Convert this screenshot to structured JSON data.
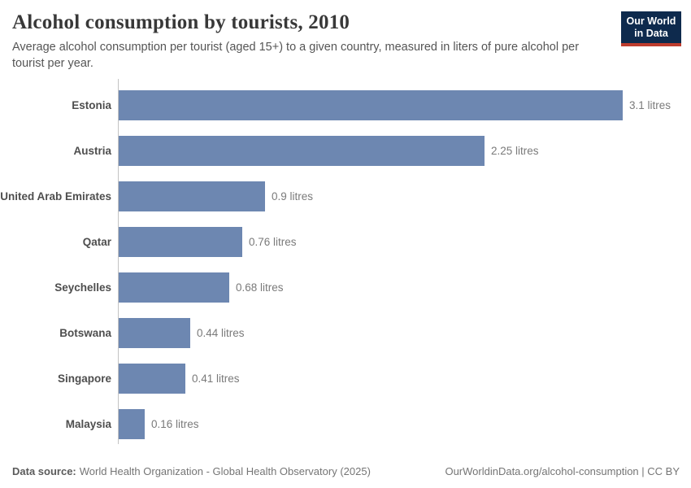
{
  "header": {
    "title": "Alcohol consumption by tourists, 2010",
    "subtitle": "Average alcohol consumption per tourist (aged 15+) to a given country, measured in liters of pure alcohol per tourist per year.",
    "logo": {
      "line1": "Our World",
      "line2": "in Data"
    }
  },
  "chart_data": {
    "type": "bar",
    "orientation": "horizontal",
    "title": "Alcohol consumption by tourists, 2010",
    "categories": [
      "Estonia",
      "Austria",
      "United Arab Emirates",
      "Qatar",
      "Seychelles",
      "Botswana",
      "Singapore",
      "Malaysia"
    ],
    "values": [
      3.1,
      2.25,
      0.9,
      0.76,
      0.68,
      0.44,
      0.41,
      0.16
    ],
    "value_labels": [
      "3.1 litres",
      "2.25 litres",
      "0.9 litres",
      "0.76 litres",
      "0.68 litres",
      "0.44 litres",
      "0.41 litres",
      "0.16 litres"
    ],
    "unit": "litres",
    "xlabel": "",
    "ylabel": "",
    "xlim": [
      0,
      3.1
    ],
    "grid": false,
    "legend": false
  },
  "footer": {
    "source_label": "Data source:",
    "source_text": "World Health Organization - Global Health Observatory (2025)",
    "link_text": "OurWorldinData.org/alcohol-consumption | CC BY"
  },
  "colors": {
    "bar": "#6d87b1",
    "logo_bg": "#0e2a4d",
    "logo_accent": "#be3c2d",
    "axis_line": "#c3c3c3"
  }
}
